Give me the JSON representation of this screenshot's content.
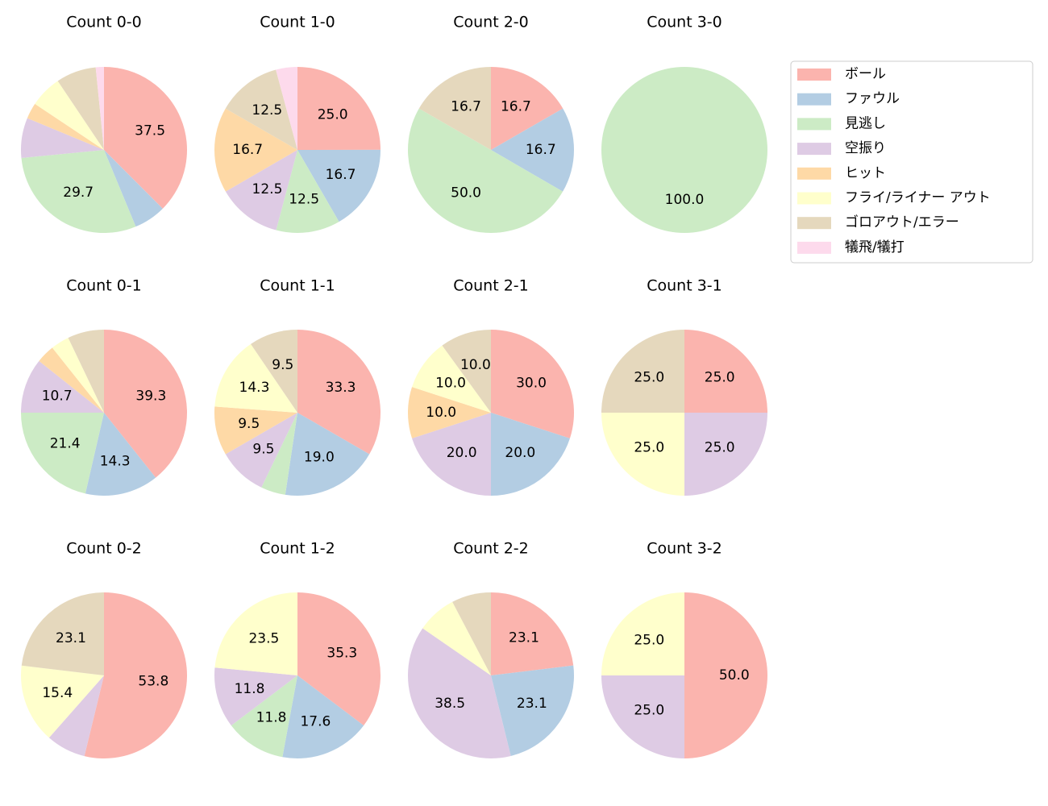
{
  "legend": {
    "labels": [
      "ボール",
      "ファウル",
      "見逃し",
      "空振り",
      "ヒット",
      "フライ/ライナー アウト",
      "ゴロアウト/エラー",
      "犠飛/犠打"
    ],
    "colors": [
      "#fbb4ae",
      "#b3cde3",
      "#ccebc5",
      "#decbe4",
      "#fed9a6",
      "#ffffcc",
      "#e5d8bd",
      "#fddaec"
    ]
  },
  "chart_data": [
    {
      "type": "pie",
      "title": "Count 0-0",
      "values": [
        37.5,
        6.25,
        29.7,
        7.8,
        3.1,
        6.25,
        7.8,
        1.6
      ],
      "value_labels": [
        "37.5",
        null,
        "29.7",
        null,
        null,
        null,
        null,
        null
      ]
    },
    {
      "type": "pie",
      "title": "Count 1-0",
      "values": [
        25,
        16.7,
        12.5,
        12.5,
        16.7,
        0,
        12.5,
        4.2
      ],
      "value_labels": [
        "25.0",
        "16.7",
        "12.5",
        "12.5",
        "16.7",
        null,
        "12.5",
        null
      ]
    },
    {
      "type": "pie",
      "title": "Count 2-0",
      "values": [
        16.7,
        16.7,
        50,
        0,
        0,
        0,
        16.7,
        0
      ],
      "value_labels": [
        "16.7",
        "16.7",
        "50.0",
        null,
        null,
        null,
        "16.7",
        null
      ]
    },
    {
      "type": "pie",
      "title": "Count 3-0",
      "values": [
        0,
        0,
        100,
        0,
        0,
        0,
        0,
        0
      ],
      "value_labels": [
        null,
        null,
        "100.0",
        null,
        null,
        null,
        null,
        null
      ]
    },
    {
      "type": "pie",
      "title": "Count 0-1",
      "values": [
        39.3,
        14.3,
        21.4,
        10.7,
        3.6,
        3.6,
        7.1,
        0
      ],
      "value_labels": [
        "39.3",
        "14.3",
        "21.4",
        "10.7",
        null,
        null,
        null,
        null
      ]
    },
    {
      "type": "pie",
      "title": "Count 1-1",
      "values": [
        33.3,
        19.0,
        4.8,
        9.5,
        9.5,
        14.3,
        9.5,
        0
      ],
      "value_labels": [
        "33.3",
        "19.0",
        null,
        "9.5",
        "9.5",
        "14.3",
        "9.5",
        null
      ]
    },
    {
      "type": "pie",
      "title": "Count 2-1",
      "values": [
        30,
        20,
        0,
        20,
        10,
        10,
        10,
        0
      ],
      "value_labels": [
        "30.0",
        "20.0",
        null,
        "20.0",
        "10.0",
        "10.0",
        "10.0",
        null
      ]
    },
    {
      "type": "pie",
      "title": "Count 3-1",
      "values": [
        25,
        0,
        0,
        25,
        0,
        25,
        25,
        0
      ],
      "value_labels": [
        "25.0",
        null,
        null,
        "25.0",
        null,
        "25.0",
        "25.0",
        null
      ]
    },
    {
      "type": "pie",
      "title": "Count 0-2",
      "values": [
        53.8,
        0,
        0,
        7.7,
        0,
        15.4,
        23.1,
        0
      ],
      "value_labels": [
        "53.8",
        null,
        null,
        null,
        null,
        "15.4",
        "23.1",
        null
      ]
    },
    {
      "type": "pie",
      "title": "Count 1-2",
      "values": [
        35.3,
        17.6,
        11.8,
        11.8,
        0,
        23.5,
        0,
        0
      ],
      "value_labels": [
        "35.3",
        "17.6",
        "11.8",
        "11.8",
        null,
        "23.5",
        null,
        null
      ]
    },
    {
      "type": "pie",
      "title": "Count 2-2",
      "values": [
        23.1,
        23.1,
        0,
        38.5,
        0,
        7.7,
        7.7,
        0
      ],
      "value_labels": [
        "23.1",
        "23.1",
        null,
        "38.5",
        null,
        null,
        null,
        null
      ]
    },
    {
      "type": "pie",
      "title": "Count 3-2",
      "values": [
        50,
        0,
        0,
        25,
        0,
        25,
        0,
        0
      ],
      "value_labels": [
        "50.0",
        null,
        null,
        "25.0",
        null,
        "25.0",
        null,
        null
      ]
    }
  ]
}
